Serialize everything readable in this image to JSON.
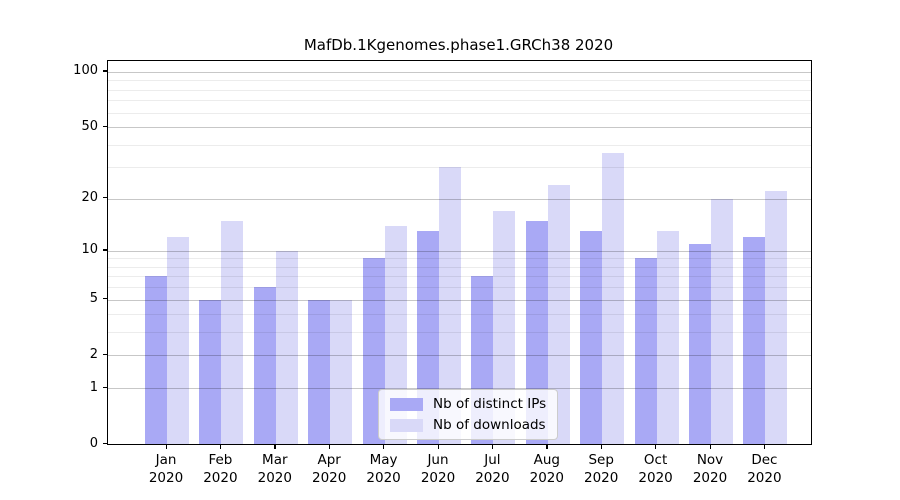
{
  "chart_data": {
    "type": "bar",
    "title": "MafDb.1Kgenomes.phase1.GRCh38 2020",
    "categories": [
      "Jan",
      "Feb",
      "Mar",
      "Apr",
      "May",
      "Jun",
      "Jul",
      "Aug",
      "Sep",
      "Oct",
      "Nov",
      "Dec"
    ],
    "category_year": "2020",
    "series": [
      {
        "name": "Nb of distinct IPs",
        "color": "#a9a9f5",
        "values": [
          7,
          5,
          6,
          5,
          9,
          13,
          7,
          15,
          13,
          9,
          11,
          12
        ]
      },
      {
        "name": "Nb of downloads",
        "color": "#d9d9f8",
        "values": [
          12,
          15,
          10,
          5,
          14,
          30,
          17,
          24,
          36,
          13,
          20,
          22
        ]
      }
    ],
    "y_scale": "log10(1+x)",
    "ylim": [
      0,
      115
    ],
    "y_ticks": [
      0,
      1,
      2,
      5,
      10,
      20,
      50,
      100
    ],
    "y_minor_ticks": [
      3,
      4,
      6,
      7,
      8,
      9,
      30,
      40,
      60,
      70,
      80,
      90
    ],
    "grid": true,
    "legend_position": "bottom-center"
  }
}
